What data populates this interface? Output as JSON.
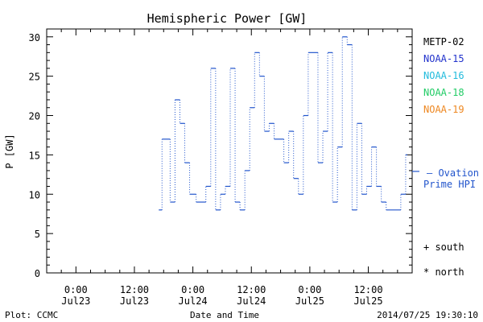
{
  "chart_data": {
    "type": "line",
    "title": "Hemispheric Power [GW]",
    "ylabel": "P [GW]",
    "xlabel": "Date and Time",
    "ylim": [
      0,
      31
    ],
    "yticks": [
      0,
      5,
      10,
      15,
      20,
      25,
      30
    ],
    "xlim": [
      "2014-07-22T18:00",
      "2014-07-25T21:00"
    ],
    "xticks": [
      {
        "t": "2014-07-23T00:00",
        "line1": "0:00",
        "line2": "Jul23"
      },
      {
        "t": "2014-07-23T12:00",
        "line1": "12:00",
        "line2": "Jul23"
      },
      {
        "t": "2014-07-24T00:00",
        "line1": "0:00",
        "line2": "Jul24"
      },
      {
        "t": "2014-07-24T12:00",
        "line1": "12:00",
        "line2": "Jul24"
      },
      {
        "t": "2014-07-25T00:00",
        "line1": "0:00",
        "line2": "Jul25"
      },
      {
        "t": "2014-07-25T12:00",
        "line1": "12:00",
        "line2": "Jul25"
      }
    ],
    "legend": [
      {
        "name": "METP-02",
        "color": "#000000"
      },
      {
        "name": "NOAA-15",
        "color": "#2233cc"
      },
      {
        "name": "NOAA-16",
        "color": "#22bbdd"
      },
      {
        "name": "NOAA-18",
        "color": "#22cc66"
      },
      {
        "name": "NOAA-19",
        "color": "#ee8822"
      }
    ],
    "series": [
      {
        "name": "NOAA-15",
        "color": "#2255cc",
        "points": [
          [
            "2014-07-23T17:00",
            8
          ],
          [
            "2014-07-23T17:40",
            17
          ],
          [
            "2014-07-23T19:20",
            9
          ],
          [
            "2014-07-23T20:20",
            22
          ],
          [
            "2014-07-23T21:20",
            19
          ],
          [
            "2014-07-23T22:20",
            14
          ],
          [
            "2014-07-23T23:20",
            10
          ],
          [
            "2014-07-24T00:40",
            9
          ],
          [
            "2014-07-24T02:40",
            11
          ],
          [
            "2014-07-24T03:40",
            26
          ],
          [
            "2014-07-24T04:40",
            8
          ],
          [
            "2014-07-24T05:40",
            10
          ],
          [
            "2014-07-24T06:40",
            11
          ],
          [
            "2014-07-24T07:40",
            26
          ],
          [
            "2014-07-24T08:40",
            9
          ],
          [
            "2014-07-24T09:40",
            8
          ],
          [
            "2014-07-24T10:40",
            13
          ],
          [
            "2014-07-24T11:40",
            21
          ],
          [
            "2014-07-24T12:40",
            28
          ],
          [
            "2014-07-24T13:40",
            25
          ],
          [
            "2014-07-24T14:40",
            18
          ],
          [
            "2014-07-24T15:40",
            19
          ],
          [
            "2014-07-24T16:40",
            17
          ],
          [
            "2014-07-24T18:40",
            14
          ],
          [
            "2014-07-24T19:40",
            18
          ],
          [
            "2014-07-24T20:40",
            12
          ],
          [
            "2014-07-24T21:40",
            10
          ],
          [
            "2014-07-24T22:40",
            20
          ],
          [
            "2014-07-24T23:40",
            28
          ],
          [
            "2014-07-25T01:40",
            14
          ],
          [
            "2014-07-25T02:40",
            18
          ],
          [
            "2014-07-25T03:40",
            28
          ],
          [
            "2014-07-25T04:40",
            9
          ],
          [
            "2014-07-25T05:40",
            16
          ],
          [
            "2014-07-25T06:40",
            30
          ],
          [
            "2014-07-25T07:40",
            29
          ],
          [
            "2014-07-25T08:40",
            8
          ],
          [
            "2014-07-25T09:40",
            19
          ],
          [
            "2014-07-25T10:40",
            10
          ],
          [
            "2014-07-25T11:40",
            11
          ],
          [
            "2014-07-25T12:40",
            16
          ],
          [
            "2014-07-25T13:40",
            11
          ],
          [
            "2014-07-25T14:40",
            9
          ],
          [
            "2014-07-25T15:40",
            8
          ],
          [
            "2014-07-25T18:40",
            10
          ],
          [
            "2014-07-25T19:40",
            15
          ],
          [
            "2014-07-25T20:00",
            15
          ]
        ]
      }
    ],
    "ovation": {
      "label_line1": "— Ovation",
      "label_line2": "Prime HPI",
      "value": 12.9,
      "color": "#2255cc"
    },
    "markers_legend": [
      {
        "symbol": "+",
        "label": "south"
      },
      {
        "symbol": "*",
        "label": "north"
      }
    ],
    "footer": {
      "left": "Plot: CCMC",
      "center": "Date and Time",
      "right": "2014/07/25 19:30:10"
    }
  }
}
